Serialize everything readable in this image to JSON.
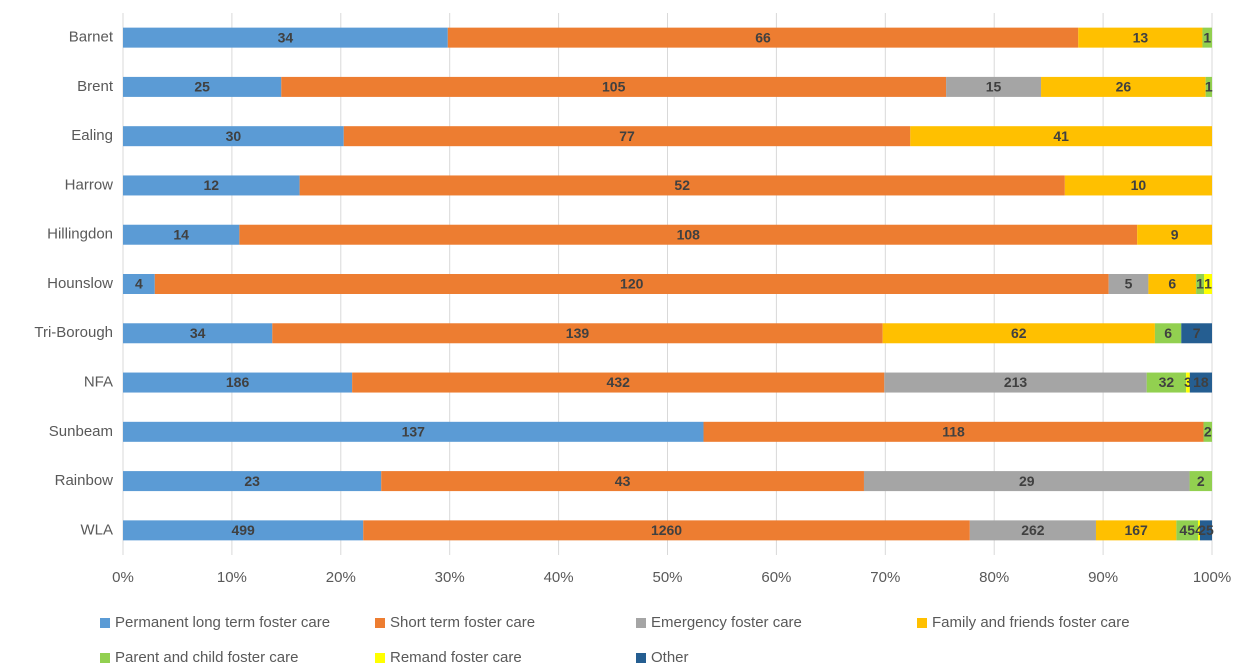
{
  "chart_data": {
    "type": "stacked_percent_bar_horizontal",
    "categories": [
      "Barnet",
      "Brent",
      "Ealing",
      "Harrow",
      "Hillingdon",
      "Hounslow",
      "Tri-Borough",
      "NFA",
      "Sunbeam",
      "Rainbow",
      "WLA"
    ],
    "series": [
      {
        "name": "Permanent long term foster care",
        "color": "#5b9bd5",
        "values": [
          34,
          25,
          30,
          12,
          14,
          4,
          34,
          186,
          137,
          23,
          499
        ]
      },
      {
        "name": "Short term foster care",
        "color": "#ed7d31",
        "values": [
          66,
          105,
          77,
          52,
          108,
          120,
          139,
          432,
          118,
          43,
          1260
        ]
      },
      {
        "name": "Emergency foster care",
        "color": "#a5a5a5",
        "values": [
          null,
          15,
          null,
          null,
          null,
          5,
          null,
          213,
          null,
          29,
          262
        ]
      },
      {
        "name": "Family and friends foster care",
        "color": "#ffc000",
        "values": [
          13,
          26,
          41,
          10,
          9,
          6,
          62,
          null,
          null,
          null,
          167
        ]
      },
      {
        "name": "Parent and child foster care",
        "color": "#92d050",
        "values": [
          1,
          1,
          null,
          null,
          null,
          1,
          6,
          32,
          2,
          2,
          45
        ]
      },
      {
        "name": "Remand foster care",
        "color": "#ffff00",
        "values": [
          null,
          null,
          null,
          null,
          null,
          1,
          null,
          3,
          null,
          null,
          4
        ]
      },
      {
        "name": "Other",
        "color": "#255e91",
        "values": [
          null,
          null,
          null,
          null,
          null,
          null,
          7,
          18,
          null,
          null,
          25
        ]
      }
    ],
    "xlim": [
      0,
      100
    ],
    "xticks": [
      {
        "value": 0,
        "label": "0%"
      },
      {
        "value": 10,
        "label": "10%"
      },
      {
        "value": 20,
        "label": "20%"
      },
      {
        "value": 30,
        "label": "30%"
      },
      {
        "value": 40,
        "label": "40%"
      },
      {
        "value": 50,
        "label": "50%"
      },
      {
        "value": 60,
        "label": "60%"
      },
      {
        "value": 70,
        "label": "70%"
      },
      {
        "value": 80,
        "label": "80%"
      },
      {
        "value": 90,
        "label": "90%"
      },
      {
        "value": 100,
        "label": "100%"
      }
    ],
    "grid": true,
    "legend": "bottom"
  }
}
